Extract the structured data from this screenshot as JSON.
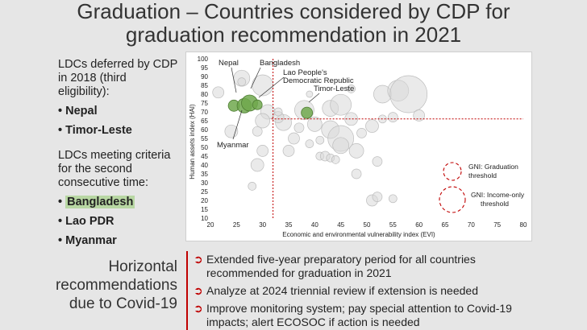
{
  "slide": {
    "title_line1": "Graduation – Countries considered by CDP for",
    "title_line2": "graduation recommendation in 2021"
  },
  "left": {
    "deferred_heading_l1": "LDCs deferred by CDP",
    "deferred_heading_l2": "in 2018 (third",
    "deferred_heading_l3": "eligibility):",
    "deferred_items": [
      "Nepal",
      "Timor-Leste"
    ],
    "meeting_heading_l1": "LDCs meeting criteria",
    "meeting_heading_l2": "for the second",
    "meeting_heading_l3": "consecutive time:",
    "meeting_items": [
      "Bangladesh",
      "Lao PDR",
      "Myanmar"
    ],
    "highlight_color": "#b8d7a3"
  },
  "horizontal": {
    "label_l1": "Horizontal",
    "label_l2": "recommendations",
    "label_l3": "due to Covid-19",
    "items": [
      "Extended five-year preparatory period for all countries recommended for graduation in 2021",
      "Analyze at 2024 triennial review if extension is needed",
      "Improve monitoring system; pay special attention to Covid-19 impacts; alert ECOSOC if action is needed"
    ],
    "accent_color": "#c00000"
  },
  "chart_data": {
    "type": "scatter",
    "xlabel": "Economic and environmental vulnerability index (EVI)",
    "ylabel": "Human assets index (HAI)",
    "xlim": [
      20,
      80
    ],
    "ylim": [
      10,
      100
    ],
    "xticks": [
      20,
      25,
      30,
      35,
      40,
      45,
      50,
      55,
      60,
      65,
      70,
      75,
      80
    ],
    "yticks": [
      10,
      15,
      20,
      25,
      30,
      35,
      40,
      45,
      50,
      55,
      60,
      65,
      70,
      75,
      80,
      85,
      90,
      95,
      100
    ],
    "thresholds": {
      "evi": 32,
      "hai": 66
    },
    "colors": {
      "highlight": "#70a84d",
      "other": "#d9d9d9",
      "threshold": "#c00000"
    },
    "highlighted": [
      {
        "name": "Nepal",
        "x": 24.5,
        "y": 73.5,
        "r": 7
      },
      {
        "name": "Myanmar",
        "x": 26.5,
        "y": 73.5,
        "r": 9
      },
      {
        "name": "Bangladesh",
        "x": 27.5,
        "y": 75,
        "r": 10
      },
      {
        "name": "Lao People's Democratic Republic",
        "x": 29,
        "y": 74,
        "r": 6
      },
      {
        "name": "Timor-Leste",
        "x": 38.5,
        "y": 69.5,
        "r": 7
      }
    ],
    "labels": {
      "nepal": "Nepal",
      "bangladesh": "Bangladesh",
      "lao_l1": "Lao People's",
      "lao_l2": "Democratic Republic",
      "timor": "Timor-Leste",
      "myanmar": "Myanmar"
    },
    "others": [
      {
        "x": 26,
        "y": 89,
        "r": 10
      },
      {
        "x": 30,
        "y": 85,
        "r": 13
      },
      {
        "x": 21.5,
        "y": 81,
        "r": 7
      },
      {
        "x": 26,
        "y": 87,
        "r": 5
      },
      {
        "x": 31,
        "y": 70,
        "r": 9
      },
      {
        "x": 34,
        "y": 64,
        "r": 10
      },
      {
        "x": 36,
        "y": 55,
        "r": 7
      },
      {
        "x": 37,
        "y": 61,
        "r": 6
      },
      {
        "x": 40,
        "y": 63,
        "r": 9
      },
      {
        "x": 38,
        "y": 71,
        "r": 12
      },
      {
        "x": 43,
        "y": 72,
        "r": 10
      },
      {
        "x": 45,
        "y": 74,
        "r": 13
      },
      {
        "x": 47,
        "y": 66,
        "r": 8
      },
      {
        "x": 43,
        "y": 60,
        "r": 11
      },
      {
        "x": 45,
        "y": 55,
        "r": 16
      },
      {
        "x": 45,
        "y": 51,
        "r": 10
      },
      {
        "x": 48,
        "y": 48,
        "r": 9
      },
      {
        "x": 49,
        "y": 58,
        "r": 6
      },
      {
        "x": 51,
        "y": 62,
        "r": 8
      },
      {
        "x": 53,
        "y": 66,
        "r": 5
      },
      {
        "x": 53,
        "y": 80,
        "r": 11
      },
      {
        "x": 56,
        "y": 82,
        "r": 13
      },
      {
        "x": 58,
        "y": 80,
        "r": 23
      },
      {
        "x": 60,
        "y": 68,
        "r": 7
      },
      {
        "x": 55,
        "y": 67,
        "r": 6
      },
      {
        "x": 24,
        "y": 59,
        "r": 8
      },
      {
        "x": 29,
        "y": 59,
        "r": 6
      },
      {
        "x": 30,
        "y": 48,
        "r": 7
      },
      {
        "x": 29,
        "y": 40,
        "r": 8
      },
      {
        "x": 28,
        "y": 28,
        "r": 5
      },
      {
        "x": 30,
        "y": 65,
        "r": 9
      },
      {
        "x": 33,
        "y": 67,
        "r": 7
      },
      {
        "x": 41,
        "y": 45,
        "r": 5
      },
      {
        "x": 42,
        "y": 45,
        "r": 6
      },
      {
        "x": 43,
        "y": 44,
        "r": 5
      },
      {
        "x": 44,
        "y": 43,
        "r": 5
      },
      {
        "x": 48,
        "y": 35,
        "r": 6
      },
      {
        "x": 52,
        "y": 42,
        "r": 6
      },
      {
        "x": 51,
        "y": 20,
        "r": 7
      },
      {
        "x": 52,
        "y": 22,
        "r": 6
      },
      {
        "x": 55,
        "y": 21,
        "r": 5
      },
      {
        "x": 35,
        "y": 48,
        "r": 7
      },
      {
        "x": 39,
        "y": 52,
        "r": 5
      },
      {
        "x": 41,
        "y": 54,
        "r": 5
      },
      {
        "x": 33,
        "y": 70,
        "r": 5
      },
      {
        "x": 47,
        "y": 83,
        "r": 5
      },
      {
        "x": 39,
        "y": 80,
        "r": 4
      }
    ],
    "legend": {
      "graduation_l1": "GNI: Graduation",
      "graduation_l2": "threshold",
      "income_l1": "GNI: Income-only",
      "income_l2": "threshold"
    }
  }
}
